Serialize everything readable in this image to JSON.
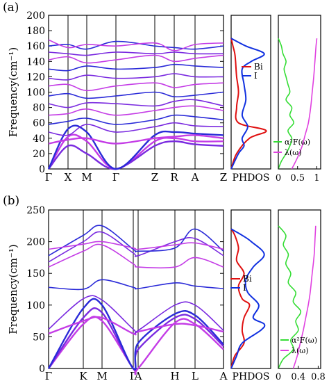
{
  "colors": {
    "phonon_blue": "#2a2ad8",
    "phonon_purple": "#7a2ae0",
    "phonon_magenta": "#c43ce6",
    "bi": "#e01010",
    "i": "#1030e0",
    "a2f": "#33dd33",
    "lambda": "#e040e0"
  },
  "chart_data": [
    {
      "panel_label": "(a)",
      "type": "line",
      "ylabel": "Frequency(cm⁻¹)",
      "ylim": [
        0,
        200
      ],
      "yticks": [
        "0",
        "20",
        "40",
        "60",
        "80",
        "100",
        "120",
        "140",
        "160",
        "180",
        "200"
      ],
      "kpath": [
        "Γ",
        "X",
        "M",
        "Γ",
        "Z",
        "R",
        "A",
        "Z"
      ],
      "dispersion": {
        "series": [
          {
            "values": [
              0,
              42,
              36,
              0,
              36,
              40,
              36,
              36
            ]
          },
          {
            "values": [
              0,
              30,
              20,
              0,
              30,
              36,
              32,
              30
            ]
          },
          {
            "values": [
              0,
              52,
              48,
              0,
              44,
              48,
              46,
              44
            ]
          },
          {
            "values": [
              33,
              38,
              40,
              33,
              40,
              42,
              44,
              40
            ]
          },
          {
            "values": [
              48,
              44,
              58,
              48,
              55,
              60,
              56,
              55
            ]
          },
          {
            "values": [
              58,
              62,
              66,
              58,
              64,
              70,
              68,
              64
            ]
          },
          {
            "values": [
              70,
              72,
              78,
              70,
              76,
              80,
              82,
              76
            ]
          },
          {
            "values": [
              85,
              80,
              86,
              85,
              82,
              88,
              90,
              82
            ]
          },
          {
            "values": [
              95,
              98,
              92,
              95,
              100,
              94,
              96,
              100
            ]
          },
          {
            "values": [
              108,
              110,
              102,
              108,
              112,
              106,
              110,
              112
            ]
          },
          {
            "values": [
              118,
              116,
              122,
              118,
              120,
              124,
              120,
              120
            ]
          },
          {
            "values": [
              130,
              128,
              134,
              130,
              132,
              136,
              134,
              132
            ]
          },
          {
            "values": [
              142,
              146,
              138,
              142,
              148,
              140,
              144,
              148
            ]
          },
          {
            "values": [
              152,
              150,
              148,
              152,
              150,
              152,
              150,
              150
            ]
          },
          {
            "values": [
              160,
              162,
              156,
              166,
              160,
              158,
              156,
              160
            ]
          },
          {
            "values": [
              168,
              158,
              162,
              160,
              164,
              154,
              162,
              164
            ]
          }
        ]
      },
      "phdos": {
        "label": "PHDOS",
        "legend": [
          "Bi",
          "I"
        ],
        "series": [
          {
            "name": "Bi",
            "y": [
              0,
              20,
              40,
              50,
              60,
              80,
              100,
              120,
              140,
              150,
              160,
              170
            ],
            "dos": [
              0,
              0.15,
              0.5,
              0.95,
              0.2,
              0.15,
              0.2,
              0.15,
              0.12,
              0.1,
              0.05,
              0
            ]
          },
          {
            "name": "I",
            "y": [
              0,
              20,
              30,
              40,
              55,
              70,
              90,
              110,
              130,
              140,
              150,
              160,
              170
            ],
            "dos": [
              0,
              0.2,
              0.35,
              0.3,
              0.45,
              0.3,
              0.4,
              0.35,
              0.3,
              0.55,
              0.9,
              0.4,
              0
            ]
          }
        ]
      },
      "eliashberg": {
        "xticks": [
          "0",
          "0.5",
          "1"
        ],
        "xlim": [
          0,
          1.1
        ],
        "legend": [
          "α²F(ω)",
          "λ(ω)"
        ],
        "a2f": {
          "y": [
            0,
            10,
            20,
            30,
            40,
            50,
            60,
            70,
            80,
            90,
            100,
            110,
            120,
            130,
            140,
            150,
            160,
            170
          ],
          "x": [
            0,
            0.08,
            0.2,
            0.3,
            0.35,
            0.25,
            0.4,
            0.3,
            0.35,
            0.2,
            0.3,
            0.25,
            0.2,
            0.15,
            0.2,
            0.12,
            0.08,
            0
          ]
        },
        "lambda": {
          "y": [
            0,
            15,
            30,
            45,
            60,
            80,
            100,
            120,
            140,
            160,
            170
          ],
          "x": [
            0.35,
            0.5,
            0.62,
            0.7,
            0.78,
            0.84,
            0.88,
            0.92,
            0.95,
            0.98,
            1.0
          ]
        }
      }
    },
    {
      "panel_label": "(b)",
      "type": "line",
      "ylabel": "Frequency(cm⁻¹)",
      "ylim": [
        0,
        250
      ],
      "yticks": [
        "0",
        "50",
        "100",
        "150",
        "200",
        "250"
      ],
      "kpath": [
        "Γ",
        "K",
        "M",
        "Γ",
        "A",
        "H",
        "L",
        "A"
      ],
      "dispersion": {
        "series": [
          {
            "values": [
              0,
              70,
              75,
              0,
              0,
              72,
              70,
              30
            ]
          },
          {
            "values": [
              0,
              80,
              88,
              0,
              30,
              80,
              78,
              35
            ]
          },
          {
            "values": [
              0,
              95,
              100,
              0,
              40,
              86,
              84,
              38
            ]
          },
          {
            "values": [
              55,
              75,
              80,
              55,
              58,
              70,
              68,
              58
            ]
          },
          {
            "values": [
              62,
              110,
              108,
              62,
              60,
              100,
              100,
              60
            ]
          },
          {
            "values": [
              128,
              125,
              140,
              128,
              126,
              135,
              130,
              126
            ]
          },
          {
            "values": [
              160,
              185,
              195,
              165,
              160,
              160,
              175,
              160
            ]
          },
          {
            "values": [
              168,
              200,
              215,
              182,
              178,
              200,
              205,
              178
            ]
          },
          {
            "values": [
              178,
              210,
              225,
              188,
              185,
              190,
              220,
              185
            ]
          },
          {
            "values": [
              188,
              196,
              200,
              190,
              188,
              195,
              198,
              188
            ]
          }
        ]
      },
      "phdos": {
        "label": "PHDOS",
        "legend": [
          "Bi",
          "I"
        ],
        "series": [
          {
            "name": "Bi",
            "y": [
              0,
              20,
              40,
              60,
              80,
              100,
              110,
              130,
              150,
              170,
              190,
              210,
              220
            ],
            "dos": [
              0,
              0.1,
              0.35,
              0.3,
              0.35,
              0.5,
              0.3,
              0.2,
              0.35,
              0.15,
              0.2,
              0.1,
              0
            ]
          },
          {
            "name": "I",
            "y": [
              0,
              20,
              40,
              60,
              70,
              80,
              100,
              120,
              140,
              160,
              180,
              200,
              210,
              220
            ],
            "dos": [
              0,
              0.15,
              0.3,
              0.8,
              0.9,
              0.6,
              0.75,
              0.45,
              0.4,
              0.6,
              0.9,
              0.55,
              0.3,
              0
            ]
          }
        ]
      },
      "eliashberg": {
        "xticks": [
          "0",
          "0.4",
          "0.8"
        ],
        "xlim": [
          0,
          0.85
        ],
        "legend": [
          "α²F(ω)",
          "λ(ω)"
        ],
        "a2f": {
          "y": [
            0,
            15,
            30,
            45,
            60,
            75,
            90,
            105,
            120,
            135,
            150,
            165,
            180,
            195,
            210,
            225
          ],
          "x": [
            0,
            0.1,
            0.3,
            0.25,
            0.4,
            0.35,
            0.45,
            0.3,
            0.35,
            0.2,
            0.25,
            0.15,
            0.2,
            0.1,
            0.15,
            0
          ]
        },
        "lambda": {
          "y": [
            0,
            20,
            40,
            60,
            80,
            100,
            120,
            150,
            180,
            210,
            225
          ],
          "x": [
            0.3,
            0.38,
            0.44,
            0.5,
            0.55,
            0.6,
            0.64,
            0.68,
            0.72,
            0.74,
            0.75
          ]
        }
      }
    }
  ]
}
